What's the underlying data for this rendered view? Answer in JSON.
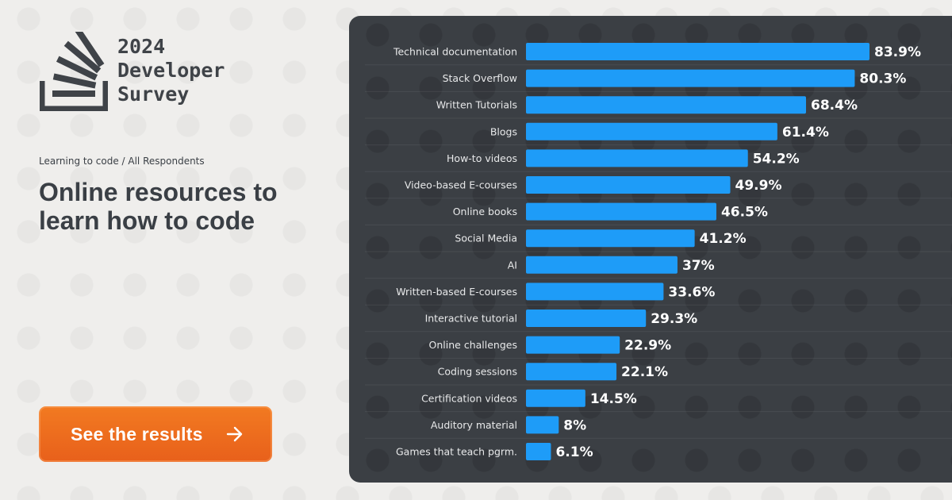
{
  "header": {
    "year": "2024",
    "line2": "Developer",
    "line3": "Survey",
    "icon": "stack-overflow-logo"
  },
  "breadcrumb": "Learning to code / All Respondents",
  "title": "Online resources to learn how to code",
  "cta": {
    "label": "See the results",
    "icon": "arrow-right-icon"
  },
  "colors": {
    "accent_bar": "#1e9cf8",
    "panel": "#3b3f44",
    "cta": "#f07020",
    "text_dark": "#3a3f45"
  },
  "chart_data": {
    "type": "bar",
    "orientation": "horizontal",
    "categories": [
      "Technical documentation",
      "Stack Overflow",
      "Written Tutorials",
      "Blogs",
      "How-to videos",
      "Video-based E-courses",
      "Online books",
      "Social Media",
      "AI",
      "Written-based E-courses",
      "Interactive tutorial",
      "Online challenges",
      "Coding sessions",
      "Certification videos",
      "Auditory material",
      "Games that teach pgrm."
    ],
    "values": [
      83.9,
      80.3,
      68.4,
      61.4,
      54.2,
      49.9,
      46.5,
      41.2,
      37,
      33.6,
      29.3,
      22.9,
      22.1,
      14.5,
      8,
      6.1
    ],
    "value_labels": [
      "83.9%",
      "80.3%",
      "68.4%",
      "61.4%",
      "54.2%",
      "49.9%",
      "46.5%",
      "41.2%",
      "37%",
      "33.6%",
      "29.3%",
      "22.9%",
      "22.1%",
      "14.5%",
      "8%",
      "6.1%"
    ],
    "title": "",
    "xlabel": "",
    "ylabel": "",
    "xlim": [
      0,
      83.9
    ],
    "grid": false,
    "legend": "none"
  }
}
